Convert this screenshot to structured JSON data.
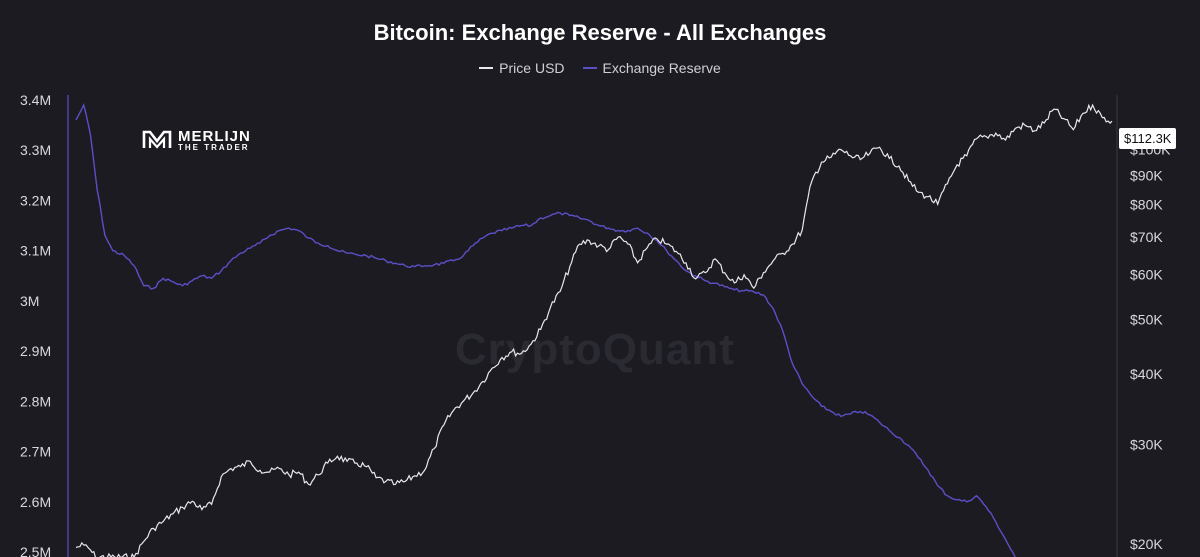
{
  "chart_data": {
    "type": "line",
    "title": "Bitcoin: Exchange Reserve - All Exchanges",
    "legend": [
      "Price USD",
      "Exchange Reserve"
    ],
    "legend_placement": "top-center",
    "grid": false,
    "x_index_range": [
      0,
      100
    ],
    "left_axis": {
      "ticks": [
        {
          "value": 3400000,
          "label": "3.4M"
        },
        {
          "value": 3300000,
          "label": "3.3M"
        },
        {
          "value": 3200000,
          "label": "3.2M"
        },
        {
          "value": 3100000,
          "label": "3.1M"
        },
        {
          "value": 3000000,
          "label": "3M"
        },
        {
          "value": 2900000,
          "label": "2.9M"
        },
        {
          "value": 2800000,
          "label": "2.8M"
        },
        {
          "value": 2700000,
          "label": "2.7M"
        },
        {
          "value": 2600000,
          "label": "2.6M"
        },
        {
          "value": 2500000,
          "label": "2.5M"
        }
      ],
      "range": [
        2490000,
        3410000
      ]
    },
    "right_axis": {
      "scale": "log",
      "ticks": [
        {
          "value": 100000,
          "label": "$100K"
        },
        {
          "value": 90000,
          "label": "$90K"
        },
        {
          "value": 80000,
          "label": "$80K"
        },
        {
          "value": 70000,
          "label": "$70K"
        },
        {
          "value": 60000,
          "label": "$60K"
        },
        {
          "value": 50000,
          "label": "$50K"
        },
        {
          "value": 40000,
          "label": "$40K"
        },
        {
          "value": 30000,
          "label": "$30K"
        },
        {
          "value": 20000,
          "label": "$20K"
        }
      ],
      "range": [
        18950,
        125000
      ],
      "current_label": "$112.3K"
    },
    "series": [
      {
        "name": "Exchange Reserve",
        "color": "#5b4fc7",
        "axis": "left",
        "points": [
          [
            0,
            3360000
          ],
          [
            0.8,
            3390000
          ],
          [
            1.5,
            3330000
          ],
          [
            2.2,
            3220000
          ],
          [
            3,
            3130000
          ],
          [
            3.8,
            3100000
          ],
          [
            5,
            3090000
          ],
          [
            6,
            3070000
          ],
          [
            7,
            3030000
          ],
          [
            8,
            3025000
          ],
          [
            9,
            3045000
          ],
          [
            10,
            3038000
          ],
          [
            11,
            3030000
          ],
          [
            12,
            3040000
          ],
          [
            13,
            3050000
          ],
          [
            14,
            3045000
          ],
          [
            15,
            3060000
          ],
          [
            16,
            3080000
          ],
          [
            17,
            3095000
          ],
          [
            18,
            3105000
          ],
          [
            19,
            3115000
          ],
          [
            20,
            3130000
          ],
          [
            21,
            3140000
          ],
          [
            22,
            3145000
          ],
          [
            23,
            3140000
          ],
          [
            24,
            3125000
          ],
          [
            25,
            3115000
          ],
          [
            26,
            3110000
          ],
          [
            27,
            3100000
          ],
          [
            28,
            3095000
          ],
          [
            29,
            3092000
          ],
          [
            30,
            3090000
          ],
          [
            31,
            3085000
          ],
          [
            32,
            3080000
          ],
          [
            33,
            3075000
          ],
          [
            34,
            3070000
          ],
          [
            35,
            3068000
          ],
          [
            36,
            3070000
          ],
          [
            37,
            3072000
          ],
          [
            38,
            3075000
          ],
          [
            39,
            3080000
          ],
          [
            40,
            3090000
          ],
          [
            41,
            3110000
          ],
          [
            42,
            3125000
          ],
          [
            43,
            3135000
          ],
          [
            44,
            3140000
          ],
          [
            45,
            3145000
          ],
          [
            46,
            3150000
          ],
          [
            47,
            3150000
          ],
          [
            48,
            3165000
          ],
          [
            49,
            3170000
          ],
          [
            50,
            3175000
          ],
          [
            51,
            3170000
          ],
          [
            52,
            3165000
          ],
          [
            53,
            3160000
          ],
          [
            54,
            3150000
          ],
          [
            55,
            3145000
          ],
          [
            56,
            3140000
          ],
          [
            57,
            3140000
          ],
          [
            58,
            3145000
          ],
          [
            59,
            3135000
          ],
          [
            60,
            3120000
          ],
          [
            61,
            3100000
          ],
          [
            62,
            3080000
          ],
          [
            63,
            3060000
          ],
          [
            64,
            3050000
          ],
          [
            65,
            3040000
          ],
          [
            66,
            3035000
          ],
          [
            67,
            3028000
          ],
          [
            68,
            3022000
          ],
          [
            69,
            3020000
          ],
          [
            70,
            3018000
          ],
          [
            71,
            3012000
          ],
          [
            72,
            2985000
          ],
          [
            73,
            2940000
          ],
          [
            74,
            2875000
          ],
          [
            75,
            2835000
          ],
          [
            76,
            2810000
          ],
          [
            77,
            2790000
          ],
          [
            78,
            2780000
          ],
          [
            79,
            2770000
          ],
          [
            80,
            2775000
          ],
          [
            81,
            2780000
          ],
          [
            82,
            2773000
          ],
          [
            83,
            2758000
          ],
          [
            84,
            2742000
          ],
          [
            85,
            2728000
          ],
          [
            86,
            2712000
          ],
          [
            87,
            2688000
          ],
          [
            88,
            2663000
          ],
          [
            89,
            2632000
          ],
          [
            90,
            2612000
          ],
          [
            91,
            2604000
          ],
          [
            92,
            2600000
          ],
          [
            93,
            2612000
          ],
          [
            94,
            2590000
          ],
          [
            95,
            2560000
          ],
          [
            96,
            2525000
          ],
          [
            97,
            2490000
          ]
        ]
      },
      {
        "name": "Price USD",
        "color": "#e8e8ec",
        "axis": "right",
        "points": [
          [
            0,
            19700
          ],
          [
            0.8,
            19900
          ],
          [
            1.5,
            19500
          ],
          [
            2,
            18950
          ],
          [
            4,
            18950
          ],
          [
            6,
            18950
          ],
          [
            7,
            20200
          ],
          [
            8,
            21300
          ],
          [
            9,
            21900
          ],
          [
            10,
            22600
          ],
          [
            11,
            23200
          ],
          [
            12,
            23800
          ],
          [
            13,
            23000
          ],
          [
            14,
            23500
          ],
          [
            15,
            26300
          ],
          [
            16,
            27200
          ],
          [
            17,
            27400
          ],
          [
            18,
            28000
          ],
          [
            19,
            27000
          ],
          [
            20,
            26800
          ],
          [
            21,
            27200
          ],
          [
            22,
            26500
          ],
          [
            23,
            26800
          ],
          [
            24,
            25500
          ],
          [
            25,
            26500
          ],
          [
            26,
            27800
          ],
          [
            27,
            28600
          ],
          [
            28,
            28000
          ],
          [
            29,
            27800
          ],
          [
            30,
            27400
          ],
          [
            31,
            26200
          ],
          [
            32,
            25800
          ],
          [
            33,
            25500
          ],
          [
            34,
            25800
          ],
          [
            35,
            26400
          ],
          [
            36,
            27000
          ],
          [
            37,
            29500
          ],
          [
            38,
            32500
          ],
          [
            39,
            34500
          ],
          [
            40,
            35800
          ],
          [
            41,
            37000
          ],
          [
            42,
            38800
          ],
          [
            43,
            41000
          ],
          [
            44,
            42800
          ],
          [
            45,
            43800
          ],
          [
            46,
            43500
          ],
          [
            47,
            45200
          ],
          [
            48,
            48000
          ],
          [
            49,
            52500
          ],
          [
            50,
            56000
          ],
          [
            51,
            62000
          ],
          [
            52,
            68000
          ],
          [
            53,
            69000
          ],
          [
            54,
            67500
          ],
          [
            55,
            66500
          ],
          [
            56,
            70000
          ],
          [
            57,
            68000
          ],
          [
            58,
            63000
          ],
          [
            59,
            67000
          ],
          [
            60,
            69500
          ],
          [
            61,
            68000
          ],
          [
            62,
            66000
          ],
          [
            63,
            63000
          ],
          [
            64,
            59000
          ],
          [
            65,
            60500
          ],
          [
            66,
            64000
          ],
          [
            67,
            60500
          ],
          [
            68,
            58000
          ],
          [
            69,
            60000
          ],
          [
            70,
            56800
          ],
          [
            71,
            60500
          ],
          [
            72,
            63500
          ],
          [
            73,
            65500
          ],
          [
            74,
            68000
          ],
          [
            75,
            72000
          ],
          [
            76,
            88000
          ],
          [
            77,
            95000
          ],
          [
            78,
            97000
          ],
          [
            79,
            100000
          ],
          [
            80,
            97500
          ],
          [
            81,
            96000
          ],
          [
            82,
            98500
          ],
          [
            83,
            101000
          ],
          [
            84,
            96500
          ],
          [
            85,
            93500
          ],
          [
            86,
            88000
          ],
          [
            87,
            84000
          ],
          [
            88,
            82500
          ],
          [
            89,
            80000
          ],
          [
            90,
            87000
          ],
          [
            91,
            94000
          ],
          [
            92,
            97500
          ],
          [
            93,
            104500
          ],
          [
            94,
            105500
          ],
          [
            95,
            107000
          ],
          [
            96,
            104000
          ],
          [
            97,
            109000
          ],
          [
            98,
            110500
          ],
          [
            99,
            108000
          ],
          [
            100,
            111500
          ],
          [
            101,
            118000
          ],
          [
            102,
            113500
          ],
          [
            103,
            108500
          ],
          [
            104,
            116000
          ],
          [
            105,
            120000
          ],
          [
            106,
            114000
          ],
          [
            107,
            112300
          ]
        ]
      }
    ]
  },
  "brand": {
    "name": "MERLIJN",
    "subtitle": "THE TRADER"
  },
  "watermark": "CryptoQuant"
}
